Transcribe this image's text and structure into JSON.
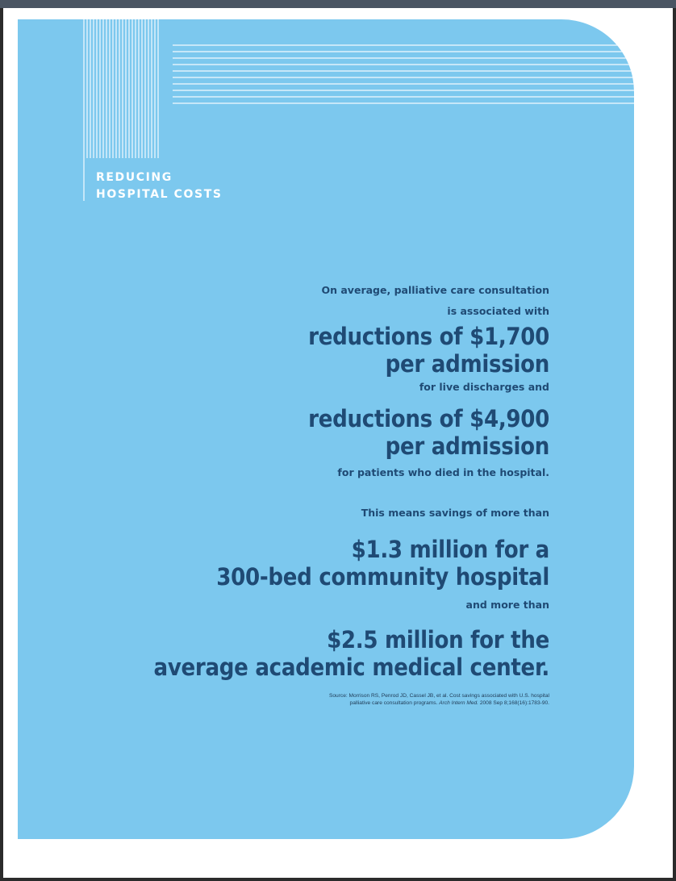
{
  "section": {
    "title_line1": "REDUCING",
    "title_line2": "HOSPITAL COSTS"
  },
  "body": {
    "intro_line1": "On average, palliative care consultation",
    "intro_line2": "is associated with",
    "stat1_line1": "reductions of $1,700",
    "stat1_line2": "per admission",
    "stat1_note": "for live discharges and",
    "stat2_line1": "reductions of $4,900",
    "stat2_line2": "per admission",
    "stat2_note": "for patients who died in the hospital.",
    "savings_intro": "This means savings of more than",
    "stat3_line1": "$1.3 million for a",
    "stat3_line2": "300-bed community hospital",
    "stat3_note": "and more than",
    "stat4_line1": "$2.5 million for the",
    "stat4_line2": "average academic medical center."
  },
  "source": {
    "line1": "Source: Morrison RS, Penrod JD, Cassel JB, et al. Cost savings associated with U.S. hospital",
    "line2_prefix": "palliative care consultation programs.",
    "line2_journal": "Arch Intern Med.",
    "line2_suffix": "2008 Sep 8;168(16):1783-90."
  },
  "colors": {
    "panel": "#7cc8ee",
    "text": "#1f4a74",
    "accent_lines": "#ffffff"
  }
}
